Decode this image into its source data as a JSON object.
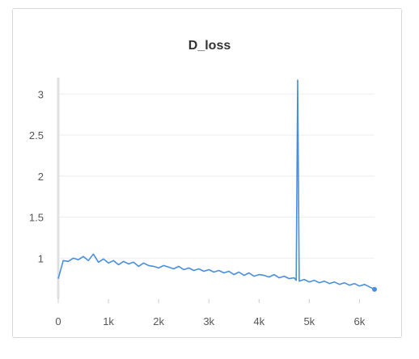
{
  "chart_data": {
    "type": "line",
    "title": "D_loss",
    "xlabel": "",
    "ylabel": "",
    "xlim": [
      0,
      6300
    ],
    "ylim": [
      0.5,
      3.2
    ],
    "x_ticks": [
      0,
      1000,
      2000,
      3000,
      4000,
      5000,
      6000
    ],
    "x_tick_labels": [
      "0",
      "1k",
      "2k",
      "3k",
      "4k",
      "5k",
      "6k"
    ],
    "y_ticks": [
      1,
      1.5,
      2,
      2.5,
      3
    ],
    "y_tick_labels": [
      "1",
      "1.5",
      "2",
      "2.5",
      "3"
    ],
    "grid": true,
    "legend": "none",
    "series": [
      {
        "color": "#4a8fdc",
        "x": [
          0,
          100,
          200,
          300,
          400,
          500,
          600,
          700,
          800,
          900,
          1000,
          1100,
          1200,
          1300,
          1400,
          1500,
          1600,
          1700,
          1800,
          1900,
          2000,
          2100,
          2200,
          2300,
          2400,
          2500,
          2600,
          2700,
          2800,
          2900,
          3000,
          3100,
          3200,
          3300,
          3400,
          3500,
          3600,
          3700,
          3800,
          3900,
          4000,
          4100,
          4200,
          4300,
          4400,
          4500,
          4600,
          4700,
          4740,
          4770,
          4800,
          4900,
          5000,
          5100,
          5200,
          5300,
          5400,
          5500,
          5600,
          5700,
          5800,
          5900,
          6000,
          6100,
          6200,
          6300
        ],
        "y": [
          0.75,
          0.97,
          0.96,
          1.0,
          0.98,
          1.02,
          0.97,
          1.05,
          0.95,
          0.99,
          0.94,
          0.97,
          0.92,
          0.96,
          0.93,
          0.95,
          0.9,
          0.94,
          0.91,
          0.9,
          0.88,
          0.91,
          0.89,
          0.87,
          0.9,
          0.86,
          0.88,
          0.85,
          0.87,
          0.84,
          0.86,
          0.83,
          0.85,
          0.82,
          0.84,
          0.8,
          0.83,
          0.79,
          0.82,
          0.78,
          0.8,
          0.79,
          0.77,
          0.8,
          0.76,
          0.78,
          0.75,
          0.76,
          0.73,
          3.17,
          0.72,
          0.74,
          0.71,
          0.73,
          0.7,
          0.72,
          0.69,
          0.71,
          0.68,
          0.7,
          0.67,
          0.69,
          0.66,
          0.68,
          0.65,
          0.62
        ]
      }
    ]
  }
}
